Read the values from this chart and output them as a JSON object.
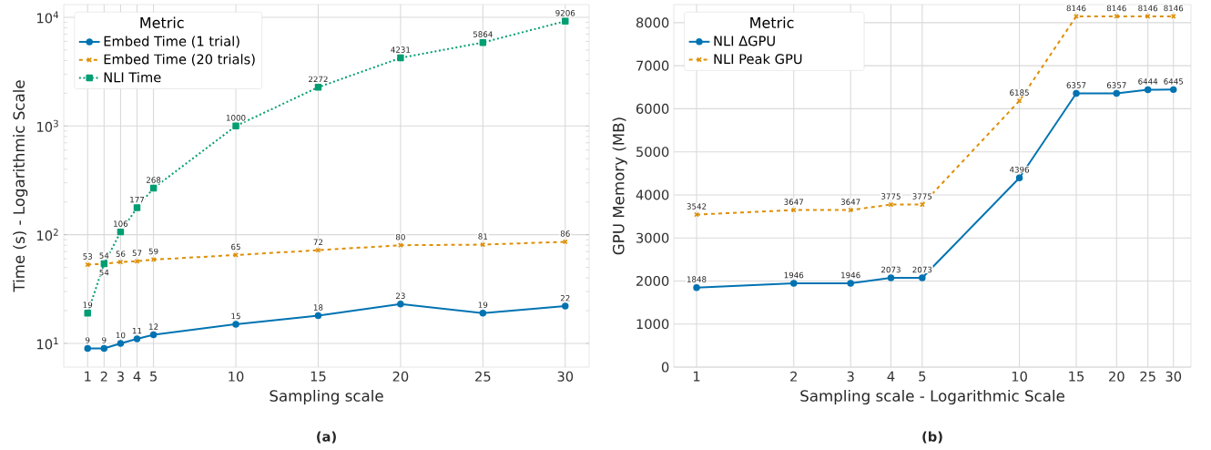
{
  "chart_data": [
    {
      "type": "line",
      "xlabel": "Sampling scale",
      "ylabel": "Time (s) - Logarithmic Scale",
      "legend_title": "Metric",
      "legend": "top left",
      "log": "y",
      "grid": true,
      "data_labels": true,
      "x": [
        1,
        2,
        3,
        4,
        5,
        10,
        15,
        20,
        25,
        30
      ],
      "xlim": [
        -0.45,
        31.45
      ],
      "xticks": [
        1,
        2,
        3,
        4,
        5,
        10,
        15,
        20,
        25,
        30
      ],
      "ylim": [
        6.05,
        13100
      ],
      "yticks": [
        {
          "value": 10,
          "label": "10$^{1}$"
        },
        {
          "value": 100,
          "label": "10$^{2}$"
        },
        {
          "value": 1000,
          "label": "10$^{3}$"
        },
        {
          "value": 10000,
          "label": "10$^{4}$"
        }
      ],
      "series": [
        {
          "name": "Embed Time (1 trial)",
          "color": "#0173b2",
          "marker": "circle",
          "line_style": "solid",
          "values": [
            9,
            9,
            10,
            11,
            12,
            15,
            18,
            23,
            19,
            22
          ]
        },
        {
          "name": "Embed Time (20 trials)",
          "color": "#de8f05",
          "marker": "cross",
          "line_style": "dashed",
          "values": [
            53,
            54,
            56,
            57,
            59,
            65,
            72,
            80,
            81,
            86
          ]
        },
        {
          "name": "NLI Time",
          "color": "#029e73",
          "marker": "square",
          "line_style": "dotted",
          "values": [
            19,
            54,
            106,
            177,
            268,
            1000,
            2272,
            4231,
            5864,
            9206
          ]
        }
      ],
      "annotations": [
        "(a)"
      ]
    },
    {
      "type": "line",
      "xlabel": "Sampling scale - Logarithmic Scale",
      "ylabel": "GPU Memory (MB)",
      "legend_title": "Metric",
      "legend": "top left",
      "log": "x",
      "grid": true,
      "data_labels": true,
      "x": [
        1,
        2,
        3,
        4,
        5,
        10,
        15,
        20,
        25,
        30
      ],
      "xlim": [
        0.85,
        34
      ],
      "xticks": [
        1,
        2,
        3,
        4,
        5,
        10,
        15,
        20,
        25,
        30
      ],
      "ylim": [
        0,
        8420
      ],
      "yticks": [
        0,
        1000,
        2000,
        3000,
        4000,
        5000,
        6000,
        7000,
        8000
      ],
      "series": [
        {
          "name": "NLI ΔGPU",
          "color": "#0173b2",
          "marker": "circle",
          "line_style": "solid",
          "values": [
            1848,
            1946,
            1946,
            2073,
            2073,
            4396,
            6357,
            6357,
            6444,
            6445
          ]
        },
        {
          "name": "NLI Peak GPU",
          "color": "#de8f05",
          "marker": "cross",
          "line_style": "dashed",
          "values": [
            3542,
            3647,
            3647,
            3775,
            3775,
            6185,
            8146,
            8146,
            8146,
            8146
          ]
        }
      ],
      "annotations": [
        "(b)"
      ]
    }
  ]
}
